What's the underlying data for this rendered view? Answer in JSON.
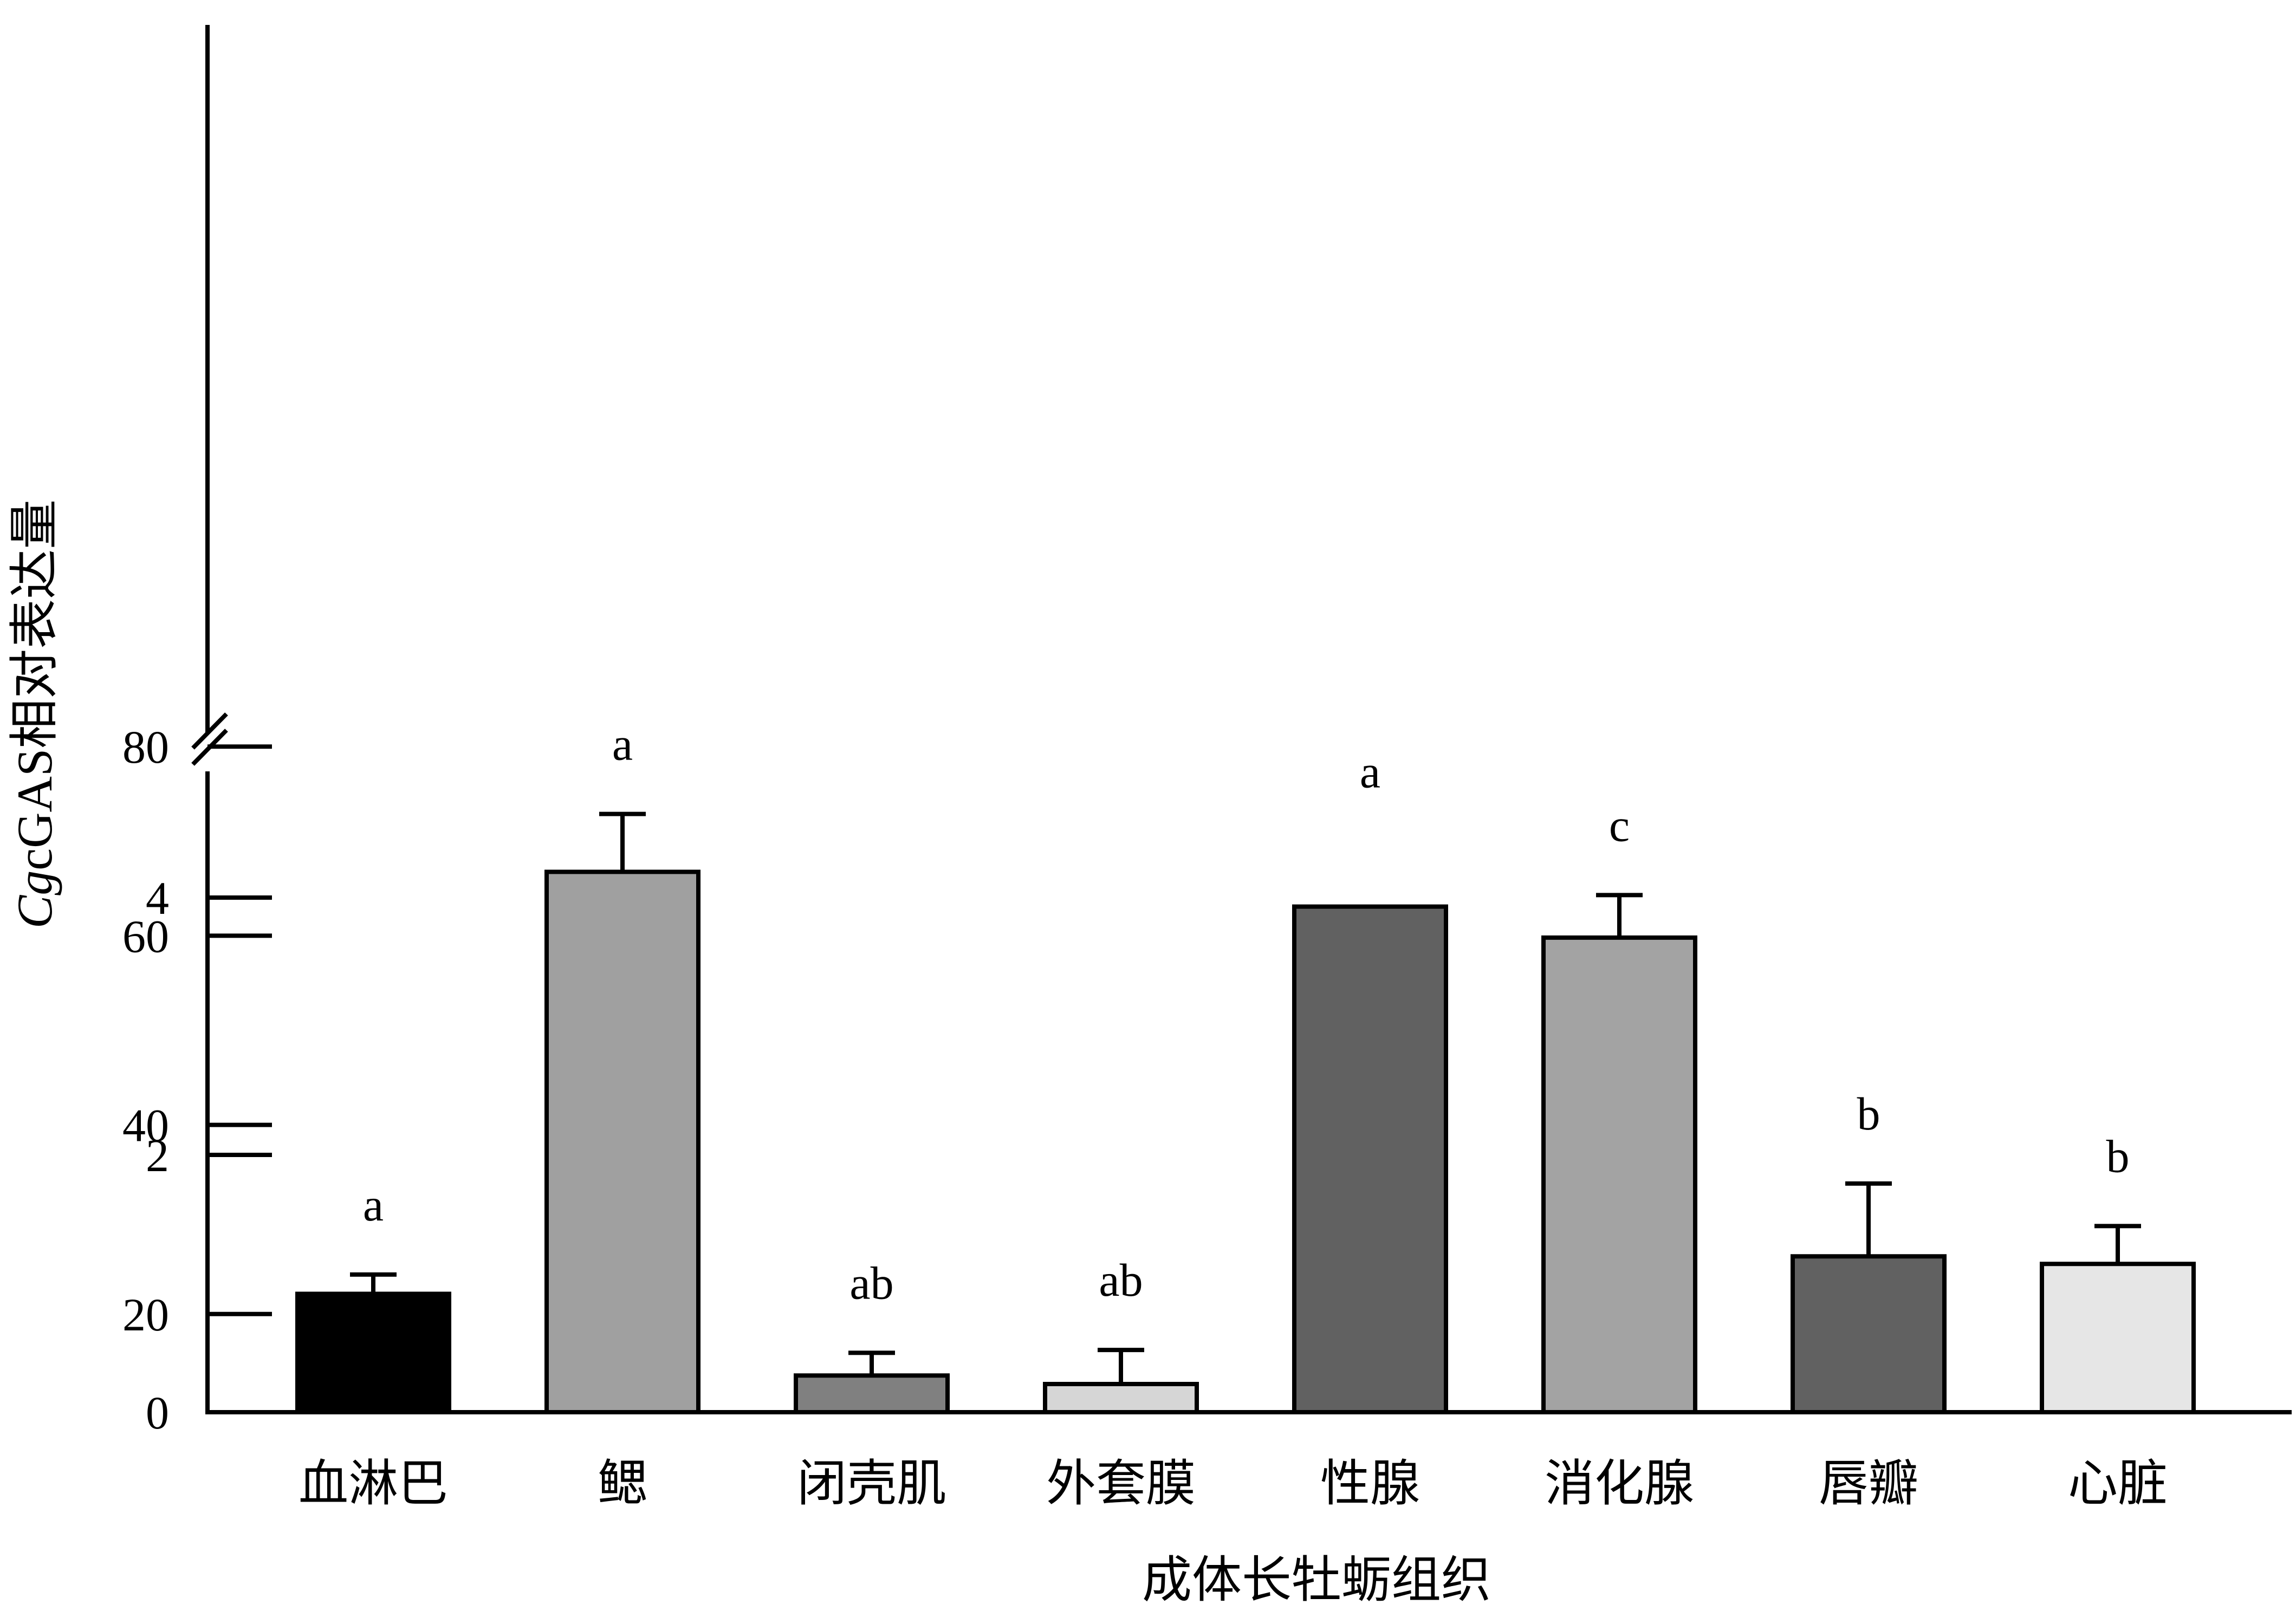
{
  "chart_data": {
    "type": "bar",
    "xlabel": "成体长牡蛎组织",
    "ylabel": {
      "italic": "Cg",
      "rest": "cGAS相对表达量"
    },
    "axis_break": {
      "lower_max": 5,
      "upper_min": 8
    },
    "ylim": [
      0,
      80
    ],
    "lower_ticks": [
      0,
      2,
      4
    ],
    "upper_ticks": [
      20,
      40,
      60,
      80
    ],
    "categories": [
      "血淋巴",
      "鳃",
      "闭壳肌",
      "外套膜",
      "性腺",
      "消化腺",
      "唇瓣",
      "心脏"
    ],
    "values": [
      0.92,
      4.2,
      13.5,
      12.6,
      3.93,
      59.8,
      26.1,
      25.3
    ],
    "errors": [
      0.15,
      0.45,
      2.4,
      3.6,
      0,
      4.5,
      7.7,
      4.0
    ],
    "significance": [
      "a",
      "a",
      "ab",
      "ab",
      "a",
      "c",
      "b",
      "b"
    ],
    "bar_colors": [
      "#000000",
      "#a0a0a0",
      "#808080",
      "#d6d6d6",
      "#616161",
      "#a3a3a3",
      "#616161",
      "#e6e6e6"
    ]
  }
}
